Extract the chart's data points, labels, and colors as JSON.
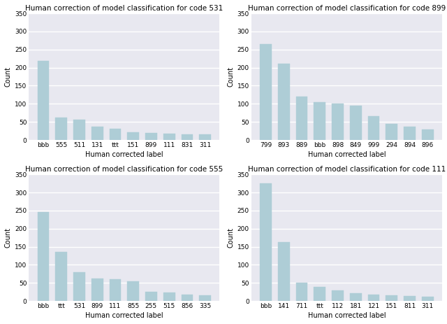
{
  "subplots": [
    {
      "title": "Human correction of model classification for code 531",
      "categories": [
        "bbb",
        "555",
        "511",
        "131",
        "ttt",
        "151",
        "899",
        "111",
        "831",
        "311"
      ],
      "values": [
        218,
        62,
        56,
        37,
        30,
        21,
        20,
        18,
        16,
        15
      ],
      "xlabel": "Human corrected label",
      "ylabel": "Count"
    },
    {
      "title": "Human correction of model classification for code 899",
      "categories": [
        "799",
        "893",
        "889",
        "bbb",
        "898",
        "849",
        "999",
        "294",
        "894",
        "896"
      ],
      "values": [
        265,
        210,
        120,
        104,
        100,
        94,
        65,
        44,
        36,
        29
      ],
      "xlabel": "Human corrected label",
      "ylabel": "Count"
    },
    {
      "title": "Human correction of model classification for code 555",
      "categories": [
        "bbb",
        "ttt",
        "531",
        "899",
        "111",
        "855",
        "255",
        "515",
        "856",
        "335"
      ],
      "values": [
        246,
        136,
        80,
        63,
        60,
        54,
        26,
        24,
        18,
        16
      ],
      "xlabel": "Human corrected label",
      "ylabel": "Count"
    },
    {
      "title": "Human correction of model classification for code 111",
      "categories": [
        "bbb",
        "141",
        "711",
        "ttt",
        "112",
        "181",
        "121",
        "151",
        "811",
        "311"
      ],
      "values": [
        325,
        162,
        50,
        38,
        30,
        22,
        18,
        15,
        14,
        12
      ],
      "xlabel": "Human corrected label",
      "ylabel": "Count"
    }
  ],
  "bar_color": "#aecdd6",
  "bar_edge_color": "#aecdd6",
  "background_color": "#e8e8f0",
  "ylim": [
    0,
    350
  ],
  "yticks": [
    0,
    50,
    100,
    150,
    200,
    250,
    300,
    350
  ],
  "title_fontsize": 7.5,
  "label_fontsize": 7,
  "tick_fontsize": 6.5,
  "fig_facecolor": "#ffffff",
  "grid_color": "#ffffff",
  "grid_linewidth": 1.0
}
